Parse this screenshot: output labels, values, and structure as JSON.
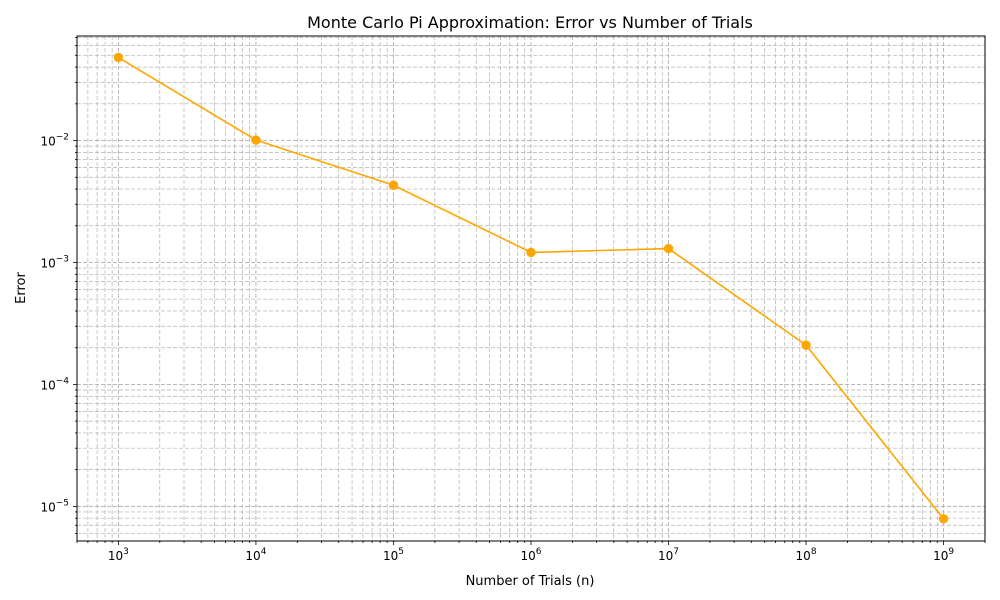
{
  "chart_data": {
    "type": "line",
    "title": "Monte Carlo Pi Approximation: Error vs Number of Trials",
    "xlabel": "Number of Trials (n)",
    "ylabel": "Error",
    "xscale": "log",
    "yscale": "log",
    "xlim": [
      500,
      2000000000
    ],
    "ylim": [
      5.2e-06,
      0.072
    ],
    "grid": true,
    "legend": "none",
    "x_ticks": [
      {
        "value": 1000,
        "base": "10",
        "exp": "3"
      },
      {
        "value": 10000,
        "base": "10",
        "exp": "4"
      },
      {
        "value": 100000,
        "base": "10",
        "exp": "5"
      },
      {
        "value": 1000000,
        "base": "10",
        "exp": "6"
      },
      {
        "value": 10000000,
        "base": "10",
        "exp": "7"
      },
      {
        "value": 100000000,
        "base": "10",
        "exp": "8"
      },
      {
        "value": 1000000000,
        "base": "10",
        "exp": "9"
      }
    ],
    "y_ticks": [
      {
        "value": 1e-05,
        "base": "10",
        "exp": "−5"
      },
      {
        "value": 0.0001,
        "base": "10",
        "exp": "−4"
      },
      {
        "value": 0.001,
        "base": "10",
        "exp": "−3"
      },
      {
        "value": 0.01,
        "base": "10",
        "exp": "−2"
      }
    ],
    "series": [
      {
        "x": [
          1000,
          10000,
          100000,
          1000000,
          10000000,
          100000000,
          1000000000
        ],
        "y": [
          0.048,
          0.0101,
          0.0043,
          0.00121,
          0.0013,
          0.00021,
          7.9e-06
        ],
        "color": "#ffa500",
        "marker": "circle"
      }
    ]
  }
}
